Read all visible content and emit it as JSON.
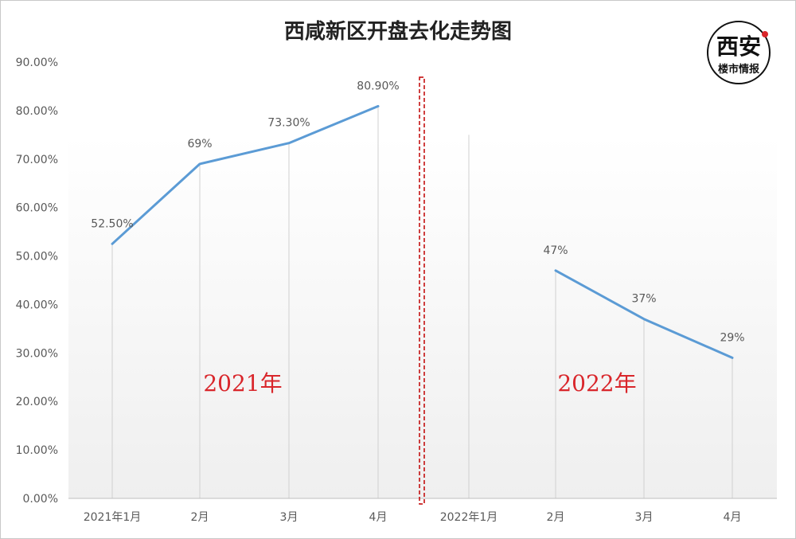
{
  "chart_data": {
    "type": "line",
    "title": "西咸新区开盘去化走势图",
    "ylim": [
      0,
      90
    ],
    "y_ticks": [
      "0.00%",
      "10.00%",
      "20.00%",
      "30.00%",
      "40.00%",
      "50.00%",
      "60.00%",
      "70.00%",
      "80.00%",
      "90.00%"
    ],
    "y_tick_values": [
      0,
      10,
      20,
      30,
      40,
      50,
      60,
      70,
      80,
      90
    ],
    "categories": [
      "2021年1月",
      "2月",
      "3月",
      "4月",
      "2022年1月",
      "2月",
      "3月",
      "4月"
    ],
    "series": [
      {
        "values": [
          52.5,
          69,
          73.3,
          80.9,
          null,
          47,
          37,
          29
        ],
        "labels": [
          "52.50%",
          "69%",
          "73.30%",
          "80.90%",
          "",
          "47%",
          "37%",
          "29%"
        ],
        "color": "#5b9bd5"
      }
    ],
    "annotations": [
      {
        "text": "2021年",
        "color": "#d9262b"
      },
      {
        "text": "2022年",
        "color": "#d9262b"
      }
    ],
    "divider_color": "#c00000",
    "grid": "vertical drop lines"
  },
  "logo": {
    "line1": "西安",
    "line2": "楼市情报",
    "dot_color": "#d9262b"
  }
}
